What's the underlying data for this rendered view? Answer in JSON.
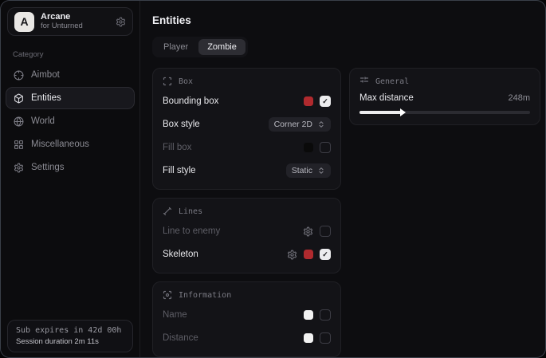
{
  "colors": {
    "accent_red": "#b02a2e",
    "swatch_black": "#0a0a0a",
    "swatch_white": "#f2f2f2"
  },
  "sidebar": {
    "logo": {
      "initial": "A",
      "title": "Arcane",
      "subtitle": "for Unturned"
    },
    "category_label": "Category",
    "items": [
      {
        "label": "Aimbot",
        "active": false
      },
      {
        "label": "Entities",
        "active": true
      },
      {
        "label": "World",
        "active": false
      },
      {
        "label": "Miscellaneous",
        "active": false
      },
      {
        "label": "Settings",
        "active": false
      }
    ],
    "subscription": {
      "expiry_text": "Sub expires in 42d 00h",
      "session_text": "Session duration 2m 11s"
    }
  },
  "main": {
    "title": "Entities",
    "tabs": [
      {
        "label": "Player",
        "active": false
      },
      {
        "label": "Zombie",
        "active": true
      }
    ],
    "cards": {
      "box": {
        "title": "Box",
        "rows": [
          {
            "label": "Bounding box",
            "swatch": "#b02a2e",
            "checked": true,
            "enabled": true
          },
          {
            "label": "Box style",
            "select": "Corner 2D",
            "enabled": true
          },
          {
            "label": "Fill box",
            "swatch": "#0a0a0a",
            "checked": false,
            "enabled": false
          },
          {
            "label": "Fill style",
            "select": "Static",
            "enabled": true
          }
        ]
      },
      "lines": {
        "title": "Lines",
        "rows": [
          {
            "label": "Line to enemy",
            "has_settings": true,
            "checked": false,
            "enabled": false
          },
          {
            "label": "Skeleton",
            "has_settings": true,
            "swatch": "#b02a2e",
            "checked": true,
            "enabled": true
          }
        ]
      },
      "information": {
        "title": "Information",
        "rows": [
          {
            "label": "Name",
            "swatch": "#f2f2f2",
            "checked": false,
            "enabled": false
          },
          {
            "label": "Distance",
            "swatch": "#f2f2f2",
            "checked": false,
            "enabled": false
          }
        ]
      },
      "general": {
        "title": "General",
        "slider": {
          "label": "Max distance",
          "value": "248m",
          "percent": 25
        }
      }
    },
    "checkmark": "✓"
  }
}
